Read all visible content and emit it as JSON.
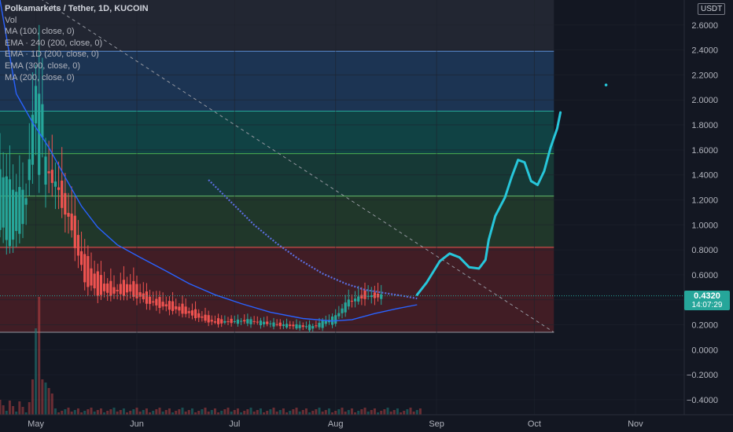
{
  "legend": {
    "title": "Polkamarkets / Tether, 1D, KUCOIN",
    "lines": [
      "Vol",
      "MA (100, close, 0)",
      "EMA · 240 (200, close, 0)",
      "EMA · 1D (200, close, 0)",
      "EMA (300, close, 0)",
      "MA (200, close, 0)"
    ]
  },
  "currency_badge": "USDT",
  "last_price": {
    "value": "0.4320",
    "countdown": "14:07:29",
    "color": "#26a69a"
  },
  "colors": {
    "background": "#131722",
    "grid": "#1e222d",
    "up": "#26a69a",
    "down": "#ef5350",
    "ma_line": "#2962ff",
    "projection": "#27c6da",
    "ema_dots": "#5b6ee1"
  },
  "chart_data": {
    "type": "candlestick",
    "y_axis": {
      "ticks": [
        2.6,
        2.4,
        2.2,
        2.0,
        1.8,
        1.6,
        1.4,
        1.2,
        1.0,
        0.8,
        0.6,
        0.4,
        0.2,
        0.0,
        -0.2,
        -0.4
      ],
      "tick_labels": [
        "2.6000",
        "2.4000",
        "2.2000",
        "2.0000",
        "1.8000",
        "1.6000",
        "1.4000",
        "1.2000",
        "1.0000",
        "0.8000",
        "0.6000",
        "0.4000",
        "0.2000",
        "0.0000",
        "−0.2000",
        "−0.4000"
      ],
      "range": [
        -0.52,
        2.8
      ]
    },
    "x_axis": {
      "labels": [
        "May",
        "Jun",
        "Jul",
        "Aug",
        "Sep",
        "Oct",
        "Nov"
      ],
      "label_days": [
        0,
        31,
        61,
        92,
        123,
        153,
        184
      ],
      "range_days": [
        -11,
        199
      ]
    },
    "fib_levels": [
      {
        "price": 2.39,
        "zone_above": "#2a2e39",
        "zone_below": "#1f3a5c"
      },
      {
        "price": 1.91,
        "zone_below": "#114a4a"
      },
      {
        "price": 1.57,
        "zone_below": "#17403a"
      },
      {
        "price": 1.23,
        "zone_below": "#233d2b"
      },
      {
        "price": 0.82,
        "zone_below": "#4a1f26"
      },
      {
        "price": 0.14
      }
    ],
    "shaded_until_day": 159,
    "trendline": {
      "from": [
        -5,
        2.92
      ],
      "to": [
        159,
        0.14
      ]
    },
    "ohlc_points": [
      [
        "2021-04-20",
        0.95,
        1.45
      ],
      [
        "2021-04-24",
        0.85,
        1.3
      ],
      [
        "2021-04-28",
        1.1,
        1.25
      ],
      [
        "2021-05-02",
        2.05,
        2.4
      ],
      [
        "2021-05-04",
        1.4,
        1.5
      ],
      [
        "2021-05-08",
        1.35,
        1.25
      ],
      [
        "2021-05-12",
        1.1,
        0.95
      ],
      [
        "2021-05-16",
        0.75,
        0.55
      ],
      [
        "2021-05-20",
        0.6,
        0.45
      ],
      [
        "2021-05-25",
        0.5,
        0.45
      ],
      [
        "2021-05-30",
        0.55,
        0.45
      ],
      [
        "2021-06-05",
        0.42,
        0.37
      ],
      [
        "2021-06-15",
        0.35,
        0.3
      ],
      [
        "2021-06-25",
        0.24,
        0.21
      ],
      [
        "2021-07-05",
        0.22,
        0.24
      ],
      [
        "2021-07-15",
        0.2,
        0.2
      ],
      [
        "2021-07-25",
        0.17,
        0.19
      ],
      [
        "2021-08-01",
        0.22,
        0.27
      ],
      [
        "2021-08-05",
        0.35,
        0.4
      ],
      [
        "2021-08-10",
        0.45,
        0.42
      ],
      [
        "2021-08-15",
        0.43,
        0.43
      ]
    ],
    "ma_100": [
      [
        -11,
        2.8
      ],
      [
        -6,
        2.05
      ],
      [
        -1,
        1.82
      ],
      [
        4,
        1.62
      ],
      [
        9,
        1.38
      ],
      [
        14,
        1.15
      ],
      [
        19,
        0.98
      ],
      [
        25,
        0.84
      ],
      [
        32,
        0.74
      ],
      [
        40,
        0.63
      ],
      [
        47,
        0.53
      ],
      [
        55,
        0.44
      ],
      [
        63,
        0.37
      ],
      [
        72,
        0.3
      ],
      [
        82,
        0.25
      ],
      [
        91,
        0.23
      ],
      [
        97,
        0.24
      ],
      [
        104,
        0.29
      ],
      [
        111,
        0.33
      ],
      [
        117,
        0.36
      ]
    ],
    "ema_dots": [
      [
        53,
        1.36
      ],
      [
        60,
        1.18
      ],
      [
        67,
        1.0
      ],
      [
        74,
        0.85
      ],
      [
        81,
        0.72
      ],
      [
        88,
        0.61
      ],
      [
        95,
        0.53
      ],
      [
        101,
        0.48
      ],
      [
        108,
        0.45
      ],
      [
        113,
        0.43
      ],
      [
        117,
        0.41
      ]
    ],
    "projection": [
      [
        117,
        0.44
      ],
      [
        120,
        0.54
      ],
      [
        124,
        0.71
      ],
      [
        127,
        0.77
      ],
      [
        130,
        0.74
      ],
      [
        133,
        0.66
      ],
      [
        136,
        0.65
      ],
      [
        138,
        0.72
      ],
      [
        139,
        0.88
      ],
      [
        141,
        1.07
      ],
      [
        144,
        1.22
      ],
      [
        146,
        1.38
      ],
      [
        148,
        1.52
      ],
      [
        150,
        1.5
      ],
      [
        152,
        1.35
      ],
      [
        154,
        1.32
      ],
      [
        156,
        1.43
      ],
      [
        158,
        1.62
      ],
      [
        160,
        1.77
      ],
      [
        161,
        1.9
      ]
    ],
    "isolated_dot": [
      175,
      2.12
    ],
    "volume_note": "spikes near early May, small bars elsewhere"
  }
}
